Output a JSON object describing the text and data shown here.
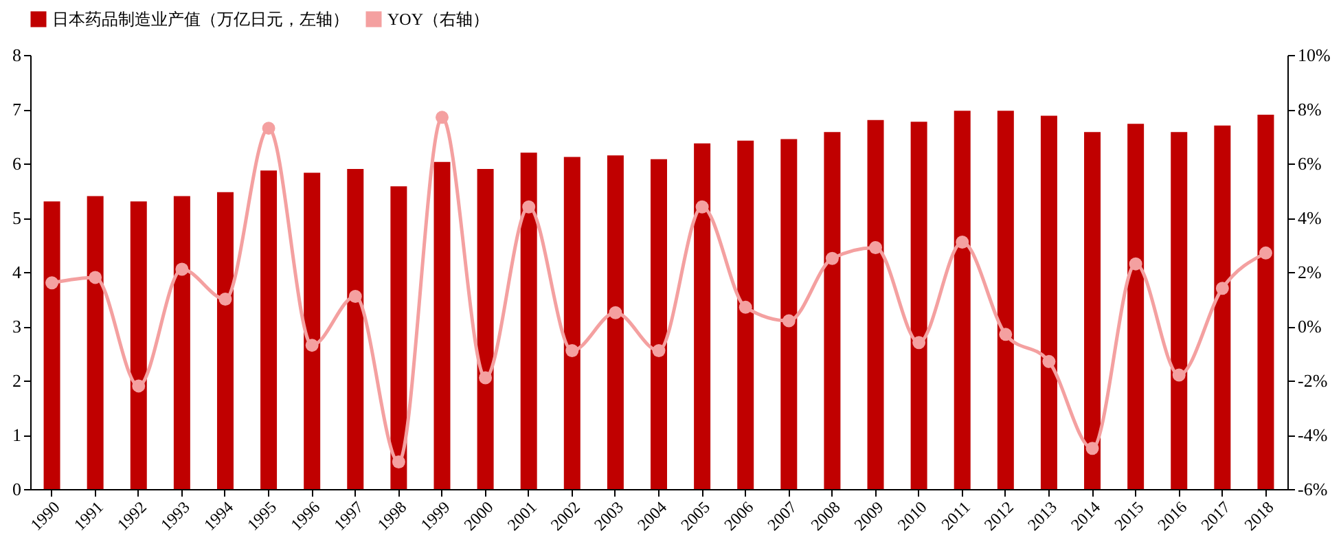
{
  "chart_data": {
    "type": "bar",
    "categories": [
      "1990",
      "1991",
      "1992",
      "1993",
      "1994",
      "1995",
      "1996",
      "1997",
      "1998",
      "1999",
      "2000",
      "2001",
      "2002",
      "2003",
      "2004",
      "2005",
      "2006",
      "2007",
      "2008",
      "2009",
      "2010",
      "2011",
      "2012",
      "2013",
      "2014",
      "2015",
      "2016",
      "2017",
      "2018"
    ],
    "series": [
      {
        "name": "日本药品制造业产值（万亿日元，左轴）",
        "color": "#c00000",
        "values": [
          5.3,
          5.4,
          5.3,
          5.4,
          5.47,
          5.87,
          5.83,
          5.9,
          5.58,
          6.03,
          5.9,
          6.2,
          6.12,
          6.15,
          6.08,
          6.37,
          6.42,
          6.45,
          6.58,
          6.8,
          6.77,
          6.97,
          6.97,
          6.88,
          6.58,
          6.73,
          6.58,
          6.7,
          6.9
        ]
      },
      {
        "name": "YOY（右轴）",
        "type": "line",
        "axis": "y2",
        "color": "#f4a0a0",
        "marker": "circle",
        "values": [
          1.6,
          1.8,
          -2.2,
          2.1,
          1.0,
          7.3,
          -0.7,
          1.1,
          -5.0,
          7.7,
          -1.9,
          4.4,
          -0.9,
          0.5,
          -0.9,
          4.4,
          0.7,
          0.2,
          2.5,
          2.9,
          -0.6,
          3.1,
          -0.3,
          -1.3,
          -4.5,
          2.3,
          -1.8,
          1.4,
          2.7
        ]
      }
    ],
    "ylim": [
      0,
      8
    ],
    "yticks": [
      0,
      1,
      2,
      3,
      4,
      5,
      6,
      7,
      8
    ],
    "y2lim": [
      -6,
      10
    ],
    "y2ticks": [
      {
        "value": -6,
        "label": "-6%"
      },
      {
        "value": -4,
        "label": "-4%"
      },
      {
        "value": -2,
        "label": "-2%"
      },
      {
        "value": 0,
        "label": "0%"
      },
      {
        "value": 2,
        "label": "2%"
      },
      {
        "value": 4,
        "label": "4%"
      },
      {
        "value": 6,
        "label": "6%"
      },
      {
        "value": 8,
        "label": "8%"
      },
      {
        "value": 10,
        "label": "10%"
      }
    ],
    "legend": "top",
    "grid": false
  }
}
